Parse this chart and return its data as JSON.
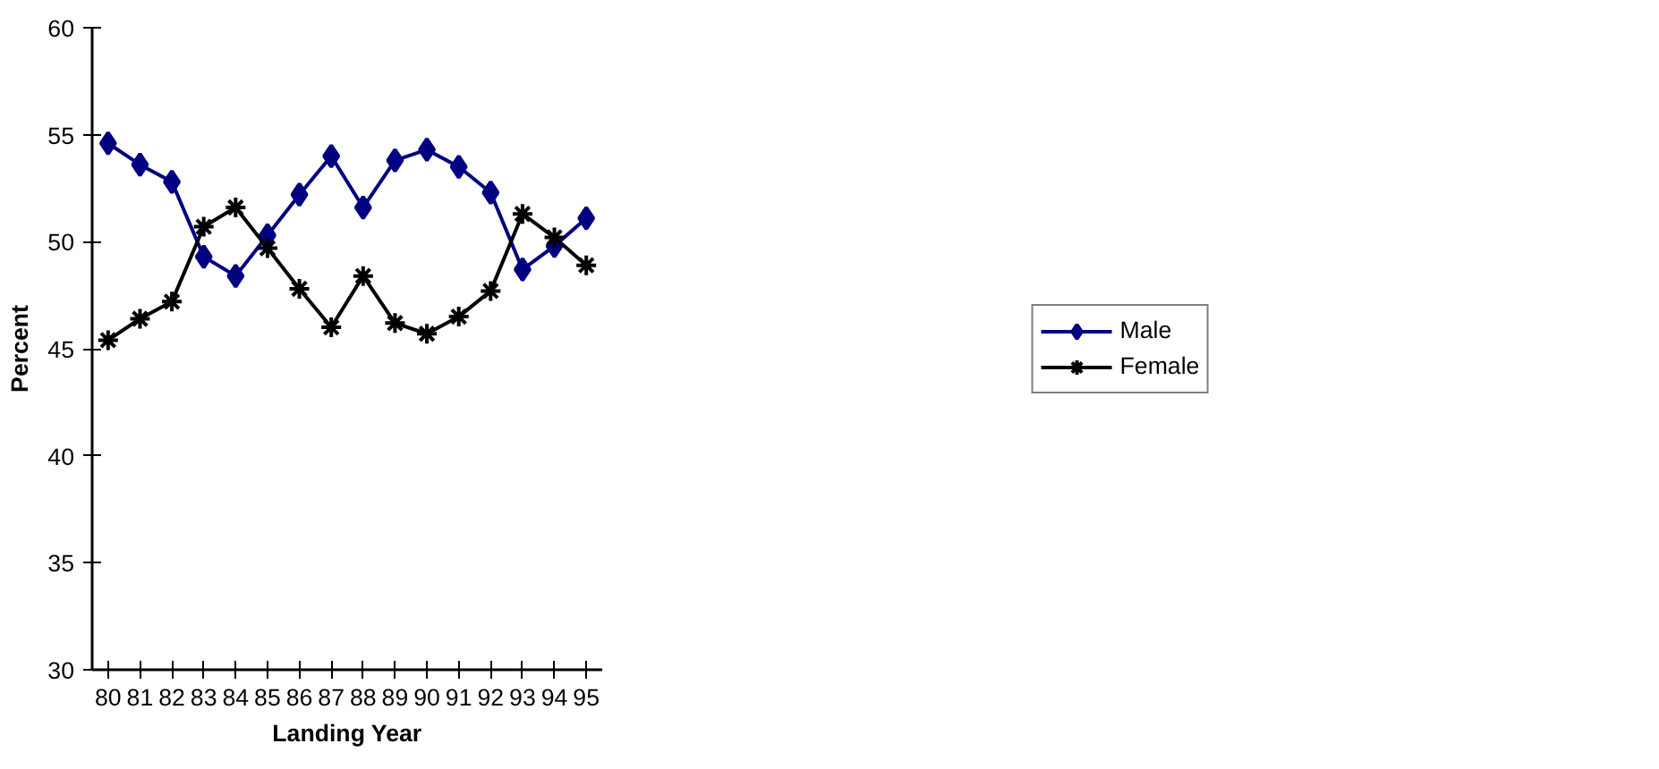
{
  "chart_data": {
    "type": "line",
    "xlabel": "Landing Year",
    "ylabel": "Percent",
    "categories": [
      "80",
      "81",
      "82",
      "83",
      "84",
      "85",
      "86",
      "87",
      "88",
      "89",
      "90",
      "91",
      "92",
      "93",
      "94",
      "95"
    ],
    "series": [
      {
        "name": "Male",
        "color": "#000080",
        "marker": "diamond",
        "values": [
          54.6,
          53.6,
          52.8,
          49.3,
          48.4,
          50.3,
          52.2,
          54.0,
          51.6,
          53.8,
          54.3,
          53.5,
          52.3,
          48.7,
          49.8,
          51.1
        ]
      },
      {
        "name": "Female",
        "color": "#000000",
        "marker": "cross",
        "values": [
          45.4,
          46.4,
          47.2,
          50.7,
          51.6,
          49.7,
          47.8,
          46.0,
          48.4,
          46.2,
          45.7,
          46.5,
          47.7,
          51.3,
          50.2,
          48.9
        ]
      }
    ],
    "ylim": [
      30,
      60
    ],
    "yticks": [
      30,
      35,
      40,
      45,
      50,
      55,
      60
    ],
    "grid": false,
    "legend": "right"
  }
}
